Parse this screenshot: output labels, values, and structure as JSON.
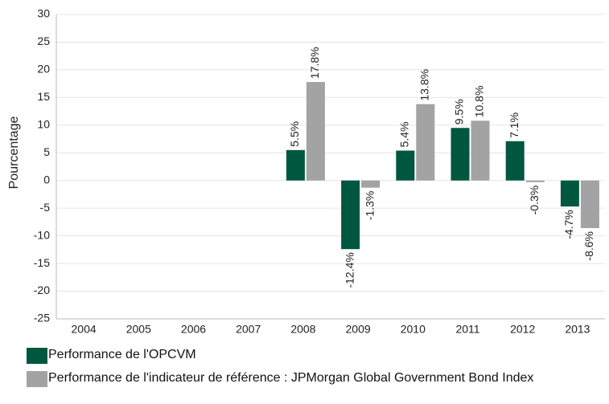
{
  "chart_data": {
    "type": "bar",
    "y_label": "Pourcentage",
    "categories": [
      "2004",
      "2005",
      "2006",
      "2007",
      "2008",
      "2009",
      "2010",
      "2011",
      "2012",
      "2013"
    ],
    "series": [
      {
        "name": "Performance de l'OPCVM",
        "color": "#00573f",
        "values": [
          null,
          null,
          null,
          null,
          5.5,
          -12.4,
          5.4,
          9.5,
          7.1,
          -4.7
        ],
        "value_labels": [
          null,
          null,
          null,
          null,
          "5.5%",
          "-12.4%",
          "5.4%",
          "9.5%",
          "7.1%",
          "-4.7%"
        ]
      },
      {
        "name": "Performance de l'indicateur de référence : JPMorgan Global Government Bond Index",
        "color": "#a3a3a3",
        "values": [
          null,
          null,
          null,
          null,
          17.8,
          -1.3,
          13.8,
          10.8,
          -0.3,
          -8.6
        ],
        "value_labels": [
          null,
          null,
          null,
          null,
          "17.8%",
          "-1.3%",
          "13.8%",
          "10.8%",
          "-0.3%",
          "-8.6%"
        ]
      }
    ],
    "ylim": [
      -25,
      30
    ],
    "yticks": [
      -25,
      -20,
      -15,
      -10,
      -5,
      0,
      5,
      10,
      15,
      20,
      25,
      30
    ],
    "grid": true,
    "legend": "bottom"
  }
}
